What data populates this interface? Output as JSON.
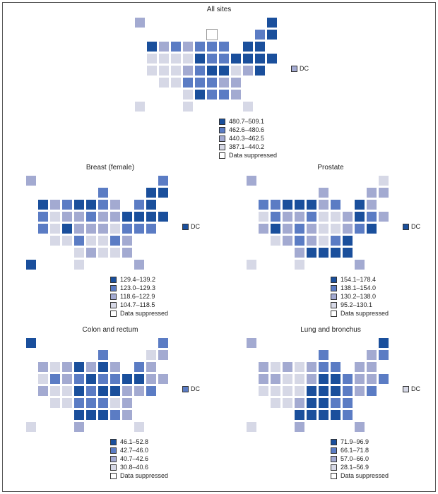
{
  "colors": {
    "1": "#1a4f9c",
    "2": "#5b7cc4",
    "3": "#a3aad1",
    "4": "#d6d8e6",
    "0": "#ffffff"
  },
  "dc_label": "DC",
  "suppressed_label": "Data suppressed",
  "panels": [
    {
      "title": "All sites",
      "dc_class": 3,
      "legend": [
        "480.7–509.1",
        "462.6–480.6",
        "440.3–462.5",
        "387.1–440.2"
      ],
      "states": {
        "WA": 1,
        "OR": 4,
        "CA": 4,
        "ID": 3,
        "MT": 2,
        "WY": 4,
        "ND": 3,
        "SD": 4,
        "MN": 2,
        "WI": 0,
        "MI": 2,
        "IA": 1,
        "IL": 2,
        "IN": 2,
        "OH": 2,
        "PA": 1,
        "NY": 1,
        "ME": 1,
        "NH": 1,
        "VT": 2,
        "MA": 1,
        "CT": 1,
        "RI": 1,
        "NJ": 1,
        "DE": 1,
        "MD": 3,
        "VA": 4,
        "WV": 1,
        "KY": 1,
        "TN": 2,
        "NC": 3,
        "SC": 3,
        "GA": 3,
        "FL": 4,
        "AL": 2,
        "MS": 2,
        "LA": 1,
        "AR": 2,
        "MO": 2,
        "KS": 2,
        "NE": 3,
        "CO": 4,
        "UT": 4,
        "NV": 4,
        "AZ": 4,
        "NM": 4,
        "TX": 4,
        "OK": 4,
        "AK": 3,
        "HI": 4
      }
    },
    {
      "title": "Breast (female)",
      "dc_class": 1,
      "legend": [
        "129.4–139.2",
        "123.0–129.3",
        "118.6–122.9",
        "104.7–118.5"
      ],
      "states": {
        "WA": 1,
        "OR": 2,
        "CA": 2,
        "ID": 3,
        "MT": 2,
        "WY": 3,
        "ND": 1,
        "SD": 3,
        "MN": 1,
        "WI": 2,
        "MI": 3,
        "IA": 2,
        "IL": 2,
        "IN": 3,
        "OH": 3,
        "PA": 1,
        "NY": 2,
        "ME": 2,
        "NH": 1,
        "VT": 1,
        "MA": 1,
        "CT": 1,
        "RI": 1,
        "NJ": 1,
        "DE": 2,
        "MD": 2,
        "VA": 2,
        "WV": 4,
        "KY": 3,
        "TN": 4,
        "NC": 2,
        "SC": 3,
        "GA": 3,
        "FL": 3,
        "AL": 4,
        "MS": 4,
        "LA": 3,
        "AR": 4,
        "MO": 3,
        "KS": 2,
        "NE": 3,
        "CO": 1,
        "UT": 4,
        "NV": 4,
        "AZ": 4,
        "NM": 4,
        "TX": 4,
        "OK": 4,
        "AK": 3,
        "HI": 1
      }
    },
    {
      "title": "Prostate",
      "dc_class": 1,
      "legend": [
        "154.1–178.4",
        "138.1–154.0",
        "130.2–138.0",
        "95.2–130.1"
      ],
      "states": {
        "WA": 2,
        "OR": 4,
        "CA": 3,
        "ID": 2,
        "MT": 1,
        "WY": 3,
        "ND": 1,
        "SD": 3,
        "MN": 1,
        "WI": 3,
        "MI": 2,
        "IA": 2,
        "IL": 3,
        "IN": 4,
        "OH": 4,
        "PA": 3,
        "NY": 1,
        "ME": 4,
        "NH": 3,
        "VT": 3,
        "MA": 3,
        "CT": 2,
        "RI": 3,
        "NJ": 1,
        "DE": 1,
        "MD": 2,
        "VA": 3,
        "WV": 4,
        "KY": 4,
        "TN": 4,
        "NC": 2,
        "SC": 1,
        "GA": 1,
        "FL": 3,
        "AL": 1,
        "MS": 1,
        "LA": 1,
        "AR": 3,
        "MO": 3,
        "KS": 2,
        "NE": 2,
        "CO": 3,
        "UT": 1,
        "NV": 2,
        "AZ": 4,
        "NM": 3,
        "TX": 4,
        "OK": 3,
        "AK": 3,
        "HI": 4
      }
    },
    {
      "title": "Colon and rectum",
      "dc_class": 2,
      "legend": [
        "46.1–52.8",
        "42.7–46.0",
        "40.7–42.6",
        "30.8–40.6"
      ],
      "states": {
        "WA": 3,
        "OR": 4,
        "CA": 3,
        "ID": 4,
        "MT": 3,
        "WY": 3,
        "ND": 1,
        "SD": 2,
        "MN": 3,
        "WI": 2,
        "MI": 3,
        "IA": 1,
        "IL": 1,
        "IN": 2,
        "OH": 2,
        "PA": 1,
        "NY": 2,
        "ME": 2,
        "NH": 3,
        "VT": 4,
        "MA": 3,
        "CT": 3,
        "RI": 3,
        "NJ": 1,
        "DE": 2,
        "MD": 3,
        "VA": 3,
        "WV": 1,
        "KY": 1,
        "TN": 2,
        "NC": 4,
        "SC": 3,
        "GA": 3,
        "FL": 4,
        "AL": 2,
        "MS": 1,
        "LA": 1,
        "AR": 2,
        "MO": 2,
        "KS": 2,
        "NE": 1,
        "CO": 4,
        "UT": 4,
        "NV": 2,
        "AZ": 4,
        "NM": 4,
        "TX": 3,
        "OK": 1,
        "AK": 1,
        "HI": 4
      }
    },
    {
      "title": "Lung and bronchus",
      "dc_class": 4,
      "legend": [
        "71.9–96.9",
        "66.1–71.8",
        "57.0–66.0",
        "28.1–56.9"
      ],
      "states": {
        "WA": 3,
        "OR": 3,
        "CA": 4,
        "ID": 4,
        "MT": 3,
        "WY": 4,
        "ND": 4,
        "SD": 4,
        "MN": 3,
        "WI": 2,
        "MI": 2,
        "IA": 3,
        "IL": 2,
        "IN": 1,
        "OH": 1,
        "PA": 2,
        "NY": 3,
        "ME": 1,
        "NH": 2,
        "VT": 3,
        "MA": 3,
        "CT": 3,
        "RI": 2,
        "NJ": 3,
        "DE": 2,
        "MD": 3,
        "VA": 2,
        "WV": 1,
        "KY": 1,
        "TN": 1,
        "NC": 2,
        "SC": 2,
        "GA": 2,
        "FL": 3,
        "AL": 1,
        "MS": 1,
        "LA": 1,
        "AR": 1,
        "MO": 1,
        "KS": 3,
        "NE": 4,
        "CO": 4,
        "UT": 4,
        "NV": 3,
        "AZ": 4,
        "NM": 4,
        "TX": 3,
        "OK": 1,
        "AK": 3,
        "HI": 4
      }
    }
  ]
}
